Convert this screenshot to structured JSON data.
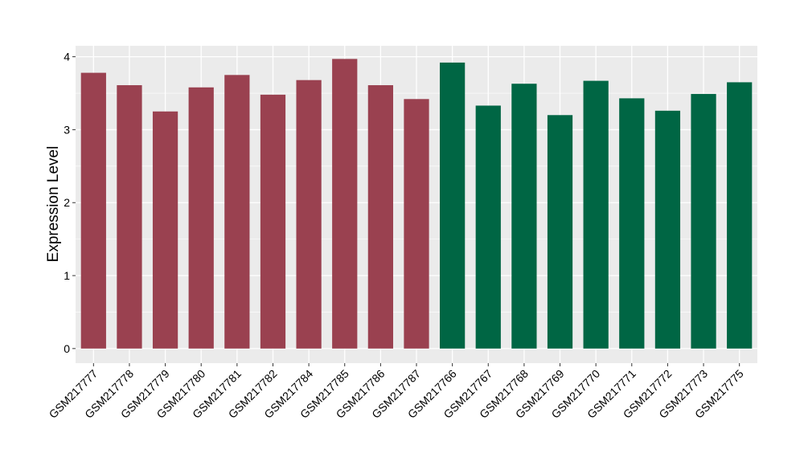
{
  "chart_data": {
    "type": "bar",
    "xlabel": "",
    "ylabel": "Expression Level",
    "ylim": [
      -0.2,
      4.15
    ],
    "yticks": [
      0,
      1,
      2,
      3,
      4
    ],
    "grid": true,
    "legend": "none",
    "categories": [
      "GSM217777",
      "GSM217778",
      "GSM217779",
      "GSM217780",
      "GSM217781",
      "GSM217782",
      "GSM217784",
      "GSM217785",
      "GSM217786",
      "GSM217787",
      "GSM217766",
      "GSM217767",
      "GSM217768",
      "GSM217769",
      "GSM217770",
      "GSM217771",
      "GSM217772",
      "GSM217773",
      "GSM217775"
    ],
    "values": [
      3.78,
      3.61,
      3.25,
      3.58,
      3.75,
      3.48,
      3.68,
      3.97,
      3.61,
      3.42,
      3.92,
      3.33,
      3.63,
      3.2,
      3.67,
      3.43,
      3.26,
      3.49,
      3.65
    ],
    "groups": [
      0,
      0,
      0,
      0,
      0,
      0,
      0,
      0,
      0,
      0,
      1,
      1,
      1,
      1,
      1,
      1,
      1,
      1,
      1
    ],
    "colors": [
      "#9a4150",
      "#006644"
    ],
    "panel_background": "#ebebeb",
    "gridline_color": "#ffffff"
  }
}
